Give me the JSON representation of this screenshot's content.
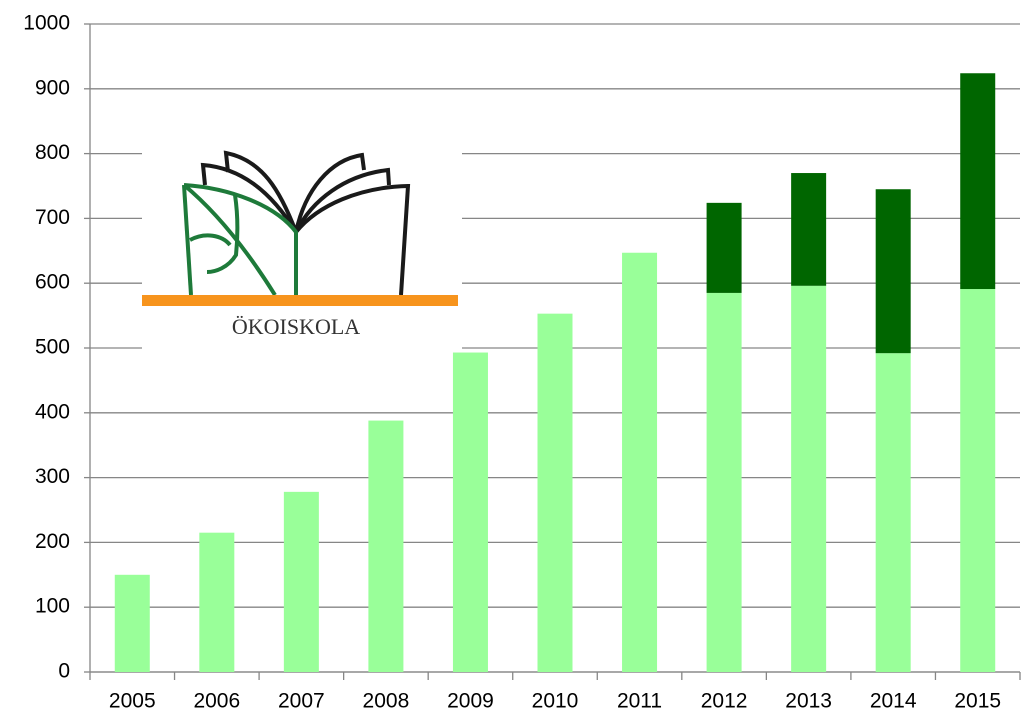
{
  "chart_data": {
    "type": "stacked_bar",
    "categories": [
      "2005",
      "2006",
      "2007",
      "2008",
      "2009",
      "2010",
      "2011",
      "2012",
      "2013",
      "2014",
      "2015"
    ],
    "series": [
      {
        "color": "#99ff99",
        "values": [
          150,
          215,
          278,
          388,
          493,
          553,
          647,
          585,
          596,
          492,
          591
        ]
      },
      {
        "color": "#006600",
        "values": [
          null,
          null,
          null,
          null,
          null,
          null,
          null,
          139,
          174,
          253,
          333
        ]
      }
    ],
    "ylim": [
      0,
      1000
    ],
    "yticks": [
      0,
      100,
      200,
      300,
      400,
      500,
      600,
      700,
      800,
      900,
      1000
    ],
    "grid": true,
    "logo_text": "ÖKOISKOLA"
  }
}
